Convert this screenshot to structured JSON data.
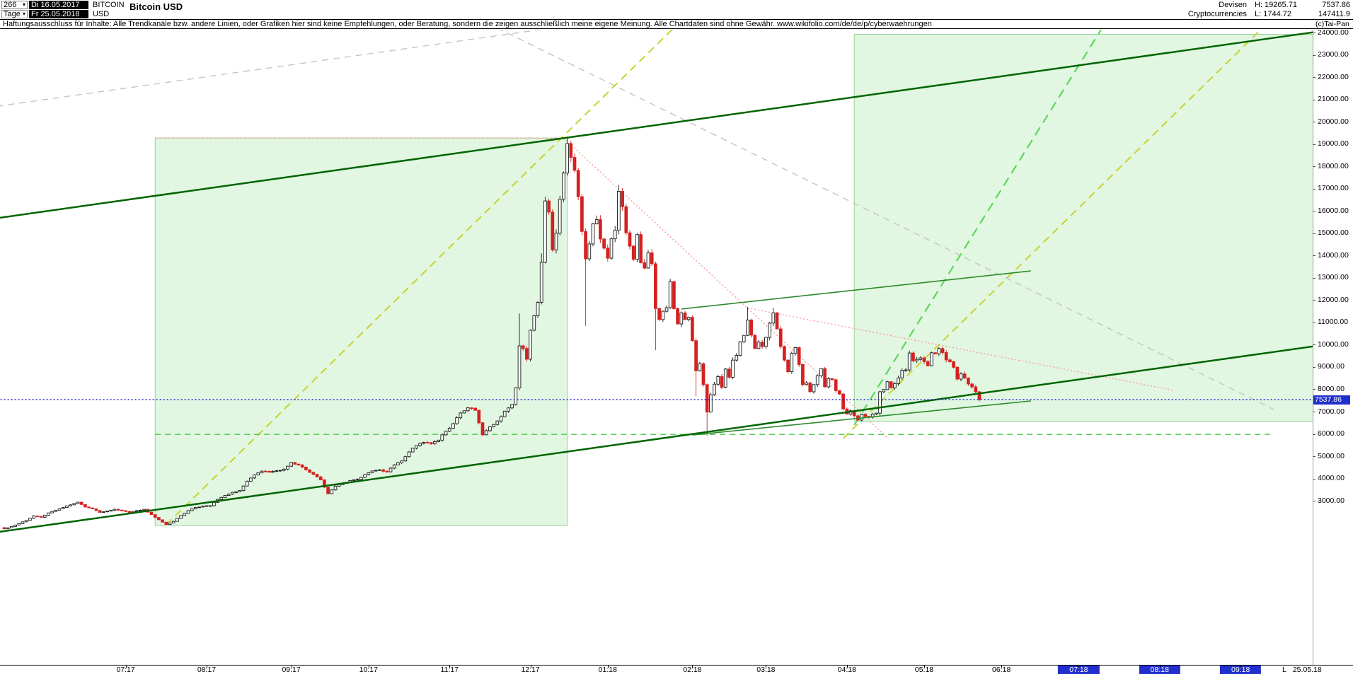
{
  "header": {
    "bars_count": "266",
    "period_label": "Tage",
    "date_from": "Di 16.05.2017",
    "date_to": "Fr 25.05.2018",
    "symbol_line1": "BITCOIN",
    "symbol_line2": "USD",
    "title": "Bitcoin USD",
    "category": "Devisen",
    "subcategory": "Cryptocurrencies",
    "high_label": "H: 19265.71",
    "low_label": "L: 1744.72",
    "last_price": "7537.86",
    "volume": "147411.9"
  },
  "disclaimer": "Haftungsausschluss für Inhalte: Alle Trendkanäle bzw. andere Linien, oder Grafiken hier sind keine Empfehlungen, oder Beratung, sondern die zeigen ausschließlich meine eigene Meinung. Alle Chartdaten sind ohne Gewähr.  www.wikifolio.com/de/de/p/cyberwaehrungen",
  "watermark": "(c)Tai-Pan",
  "y_axis": {
    "max_label": 24000,
    "min_label": 3000,
    "step": 1000,
    "decimals": 2
  },
  "x_axis": {
    "last_marker_prefix": "L",
    "last_marker_date": "25.05.18",
    "months": [
      {
        "label": "07:17",
        "i": 33,
        "highlight": false
      },
      {
        "label": "08:17",
        "i": 55,
        "highlight": false
      },
      {
        "label": "09:17",
        "i": 78,
        "highlight": false
      },
      {
        "label": "10:17",
        "i": 99,
        "highlight": false
      },
      {
        "label": "11:17",
        "i": 121,
        "highlight": false
      },
      {
        "label": "12:17",
        "i": 143,
        "highlight": false
      },
      {
        "label": "01:18",
        "i": 164,
        "highlight": false
      },
      {
        "label": "02:18",
        "i": 187,
        "highlight": false
      },
      {
        "label": "03:18",
        "i": 207,
        "highlight": false
      },
      {
        "label": "04:18",
        "i": 229,
        "highlight": false
      },
      {
        "label": "05:18",
        "i": 250,
        "highlight": false
      },
      {
        "label": "06:18",
        "i": 271,
        "highlight": false
      },
      {
        "label": "07:18",
        "i": 292,
        "highlight": true
      },
      {
        "label": "08:18",
        "i": 314,
        "highlight": true
      },
      {
        "label": "09:18",
        "i": 336,
        "highlight": true
      }
    ]
  },
  "chart_data": {
    "type": "candlestick",
    "instrument": "Bitcoin USD",
    "timeframe": "Tage (daily)",
    "bars_visible": 266,
    "date_start": "16.05.2017",
    "date_end": "25.05.2018",
    "period_high": 19265.71,
    "period_low": 1744.72,
    "last_close": 7537.86,
    "price_axis": {
      "min_label": 3000,
      "max_label": 24000,
      "step": 1000
    },
    "style": {
      "up_color": "#1a1a1a",
      "up_fill": "#ffffff",
      "down_color": "#d62020",
      "current_price_color": "#2222dd",
      "highlight_bg": "#2130cc",
      "channel_green": "#006400",
      "zone_fill": "rgba(165,232,165,0.33)"
    },
    "candles": {
      "count": 266,
      "open_first": 1800,
      "interpolation": "linear",
      "anchors": [
        [
          0,
          1745
        ],
        [
          2,
          1850
        ],
        [
          4,
          1980
        ],
        [
          6,
          2120
        ],
        [
          8,
          2320
        ],
        [
          10,
          2260
        ],
        [
          12,
          2460
        ],
        [
          14,
          2580
        ],
        [
          16,
          2700
        ],
        [
          18,
          2820
        ],
        [
          20,
          2940
        ],
        [
          22,
          2720
        ],
        [
          24,
          2640
        ],
        [
          26,
          2480
        ],
        [
          28,
          2540
        ],
        [
          30,
          2620
        ],
        [
          32,
          2560
        ],
        [
          34,
          2480
        ],
        [
          36,
          2560
        ],
        [
          38,
          2620
        ],
        [
          40,
          2380
        ],
        [
          42,
          2150
        ],
        [
          44,
          1940
        ],
        [
          46,
          2080
        ],
        [
          48,
          2340
        ],
        [
          50,
          2560
        ],
        [
          52,
          2700
        ],
        [
          54,
          2760
        ],
        [
          56,
          2780
        ],
        [
          58,
          3060
        ],
        [
          60,
          3240
        ],
        [
          62,
          3380
        ],
        [
          64,
          3460
        ],
        [
          66,
          3880
        ],
        [
          68,
          4160
        ],
        [
          70,
          4330
        ],
        [
          72,
          4280
        ],
        [
          74,
          4350
        ],
        [
          76,
          4420
        ],
        [
          78,
          4720
        ],
        [
          80,
          4610
        ],
        [
          82,
          4390
        ],
        [
          84,
          4190
        ],
        [
          86,
          3940
        ],
        [
          88,
          3320
        ],
        [
          90,
          3660
        ],
        [
          92,
          3780
        ],
        [
          94,
          3910
        ],
        [
          96,
          3960
        ],
        [
          98,
          4180
        ],
        [
          100,
          4340
        ],
        [
          102,
          4390
        ],
        [
          104,
          4300
        ],
        [
          106,
          4610
        ],
        [
          108,
          4790
        ],
        [
          110,
          5190
        ],
        [
          112,
          5480
        ],
        [
          114,
          5620
        ],
        [
          116,
          5560
        ],
        [
          118,
          5720
        ],
        [
          120,
          6120
        ],
        [
          122,
          6460
        ],
        [
          124,
          6940
        ],
        [
          126,
          7170
        ],
        [
          128,
          7060
        ],
        [
          130,
          5960
        ],
        [
          132,
          6320
        ],
        [
          134,
          6580
        ],
        [
          136,
          7020
        ],
        [
          138,
          7320
        ],
        [
          139,
          8060
        ],
        [
          140,
          9950
        ],
        [
          141,
          9830
        ],
        [
          142,
          9350
        ],
        [
          143,
          10650
        ],
        [
          144,
          11300
        ],
        [
          145,
          11900
        ],
        [
          146,
          13700
        ],
        [
          147,
          16450
        ],
        [
          148,
          15950
        ],
        [
          149,
          14250
        ],
        [
          150,
          15000
        ],
        [
          151,
          16520
        ],
        [
          152,
          17700
        ],
        [
          153,
          19020
        ],
        [
          154,
          18400
        ],
        [
          155,
          17820
        ],
        [
          156,
          16640
        ],
        [
          157,
          15080
        ],
        [
          158,
          13850
        ],
        [
          159,
          14520
        ],
        [
          160,
          15420
        ],
        [
          161,
          15610
        ],
        [
          162,
          14740
        ],
        [
          163,
          14330
        ],
        [
          164,
          13880
        ],
        [
          165,
          14750
        ],
        [
          166,
          15140
        ],
        [
          167,
          16880
        ],
        [
          168,
          16190
        ],
        [
          169,
          15020
        ],
        [
          170,
          14420
        ],
        [
          171,
          13830
        ],
        [
          172,
          14940
        ],
        [
          173,
          13680
        ],
        [
          174,
          13440
        ],
        [
          175,
          14120
        ],
        [
          176,
          13630
        ],
        [
          177,
          11620
        ],
        [
          178,
          11130
        ],
        [
          179,
          11500
        ],
        [
          180,
          11660
        ],
        [
          181,
          12830
        ],
        [
          182,
          11620
        ],
        [
          183,
          10930
        ],
        [
          184,
          11430
        ],
        [
          185,
          11130
        ],
        [
          186,
          11230
        ],
        [
          187,
          10180
        ],
        [
          188,
          8830
        ],
        [
          189,
          9150
        ],
        [
          190,
          8210
        ],
        [
          191,
          6980
        ],
        [
          192,
          7760
        ],
        [
          193,
          8230
        ],
        [
          194,
          8570
        ],
        [
          195,
          8090
        ],
        [
          196,
          8910
        ],
        [
          197,
          8540
        ],
        [
          198,
          9310
        ],
        [
          199,
          9520
        ],
        [
          200,
          10130
        ],
        [
          201,
          10420
        ],
        [
          202,
          11110
        ],
        [
          203,
          10430
        ],
        [
          204,
          9830
        ],
        [
          205,
          10120
        ],
        [
          206,
          9920
        ],
        [
          207,
          10330
        ],
        [
          208,
          10970
        ],
        [
          209,
          11430
        ],
        [
          210,
          10710
        ],
        [
          211,
          9920
        ],
        [
          212,
          9310
        ],
        [
          213,
          8790
        ],
        [
          214,
          9620
        ],
        [
          215,
          9870
        ],
        [
          216,
          9110
        ],
        [
          217,
          8210
        ],
        [
          218,
          8290
        ],
        [
          219,
          7890
        ],
        [
          220,
          8210
        ],
        [
          221,
          8610
        ],
        [
          222,
          8930
        ],
        [
          223,
          8110
        ],
        [
          224,
          8480
        ],
        [
          225,
          8430
        ],
        [
          226,
          7940
        ],
        [
          227,
          7790
        ],
        [
          228,
          7120
        ],
        [
          229,
          6890
        ],
        [
          230,
          7040
        ],
        [
          231,
          6810
        ],
        [
          232,
          6620
        ],
        [
          233,
          6880
        ],
        [
          234,
          6790
        ],
        [
          235,
          6750
        ],
        [
          236,
          6890
        ],
        [
          237,
          6930
        ],
        [
          238,
          7890
        ],
        [
          239,
          7990
        ],
        [
          240,
          8340
        ],
        [
          241,
          8070
        ],
        [
          242,
          8260
        ],
        [
          243,
          8510
        ],
        [
          244,
          8850
        ],
        [
          245,
          8870
        ],
        [
          246,
          9630
        ],
        [
          247,
          9280
        ],
        [
          248,
          9340
        ],
        [
          249,
          9410
        ],
        [
          250,
          9240
        ],
        [
          251,
          9060
        ],
        [
          252,
          9640
        ],
        [
          253,
          9590
        ],
        [
          254,
          9830
        ],
        [
          255,
          9650
        ],
        [
          256,
          9320
        ],
        [
          257,
          9240
        ],
        [
          258,
          8990
        ],
        [
          259,
          8460
        ],
        [
          260,
          8690
        ],
        [
          261,
          8510
        ],
        [
          262,
          8240
        ],
        [
          263,
          8110
        ],
        [
          264,
          7890
        ],
        [
          265,
          7537.86
        ]
      ],
      "wick_overrides": {
        "0": {
          "low": 1744.72
        },
        "44": {
          "low": 1915
        },
        "140": {
          "high": 11400
        },
        "146": {
          "high": 14100
        },
        "153": {
          "high": 19265.71
        },
        "158": {
          "low": 10850
        },
        "167": {
          "high": 17170
        },
        "177": {
          "low": 9760
        },
        "188": {
          "low": 7680
        },
        "191": {
          "low": 5920
        },
        "202": {
          "high": 11690
        },
        "209": {
          "high": 11660
        },
        "238": {
          "low": 6780
        },
        "246": {
          "high": 9740
        }
      }
    },
    "regions": [
      {
        "name": "rally-channel-zone",
        "i1": 41,
        "p1": 19270,
        "i2": 153,
        "p2": 1890,
        "fill": "rgba(165,232,165,0.33)",
        "stroke": "rgba(70,170,70,0.5)"
      },
      {
        "name": "projection-zone",
        "i1": 231,
        "p1": 23920,
        "i2": 362,
        "p2": 6560,
        "fill": "rgba(165,232,165,0.33)",
        "stroke": "rgba(70,170,70,0.5)"
      }
    ],
    "trendlines": [
      {
        "name": "gray-upper-parallel",
        "color": "#c4c4c4",
        "width": 1.4,
        "dash": "9,7",
        "layer": "back",
        "points": [
          [
            -2,
            20690
          ],
          [
            362,
            29170
          ]
        ]
      },
      {
        "name": "gray-descending",
        "color": "#c4c4c4",
        "width": 1.4,
        "dash": "9,7",
        "layer": "back",
        "points": [
          [
            134,
            24200
          ],
          [
            345,
            7100
          ]
        ]
      },
      {
        "name": "rally-support-2017-dashed",
        "color": "#c8d22e",
        "width": 2,
        "dash": "11,7",
        "layer": "back",
        "points": [
          [
            44,
            1924
          ],
          [
            186,
            24860
          ]
        ]
      },
      {
        "name": "projected-rally-yellow-dashed",
        "color": "#c8d22e",
        "width": 2,
        "dash": "11,7",
        "layer": "back",
        "points": [
          [
            228,
            5800
          ],
          [
            345,
            24700
          ]
        ]
      },
      {
        "name": "projected-rally-green-dashed",
        "color": "#5ed65e",
        "width": 2.2,
        "dash": "13,8",
        "layer": "back",
        "points": [
          [
            231,
            6400
          ],
          [
            301,
            24900
          ]
        ]
      },
      {
        "name": "red-peak-decline",
        "color": "#ff9494",
        "width": 1.3,
        "dash": "2,3",
        "layer": "back",
        "points": [
          [
            152,
            19270
          ],
          [
            240,
            5840
          ]
        ]
      },
      {
        "name": "red-feb-high-decline",
        "color": "#ff9494",
        "width": 1.3,
        "dash": "2,3",
        "layer": "back",
        "points": [
          [
            202,
            11650
          ],
          [
            318,
            7950
          ]
        ]
      },
      {
        "name": "red-peak-horizontal",
        "color": "#ff9494",
        "width": 1.2,
        "dash": "3,3",
        "layer": "back",
        "points": [
          [
            41,
            19270
          ],
          [
            153,
            19270
          ]
        ]
      },
      {
        "name": "support-6000-dashed",
        "color": "#46c846",
        "width": 1.4,
        "dash": "8,6",
        "layer": "back",
        "points": [
          [
            41,
            5980
          ],
          [
            344,
            5980
          ]
        ]
      },
      {
        "name": "upper-channel",
        "color": "#006400",
        "width": 2.5,
        "dash": null,
        "layer": "front",
        "points": [
          [
            -2,
            15676
          ],
          [
            362,
            24157
          ]
        ]
      },
      {
        "name": "lower-channel",
        "color": "#006400",
        "width": 2.5,
        "dash": null,
        "layer": "front",
        "points": [
          [
            -2,
            1592
          ],
          [
            362,
            10073
          ]
        ]
      },
      {
        "name": "mid-resistance",
        "color": "#2e8b2e",
        "width": 1.6,
        "dash": null,
        "layer": "front",
        "points": [
          [
            184,
            11600
          ],
          [
            279,
            13310
          ]
        ]
      },
      {
        "name": "mid-support",
        "color": "#2e8b2e",
        "width": 1.6,
        "dash": null,
        "layer": "front",
        "points": [
          [
            187,
            5950
          ],
          [
            279,
            7480
          ]
        ]
      },
      {
        "name": "current-price-line",
        "color": "#2222dd",
        "width": 1.5,
        "dash": "2,3",
        "layer": "front",
        "points": [
          [
            -2,
            7537.86
          ],
          [
            362,
            7537.86
          ]
        ]
      }
    ]
  }
}
